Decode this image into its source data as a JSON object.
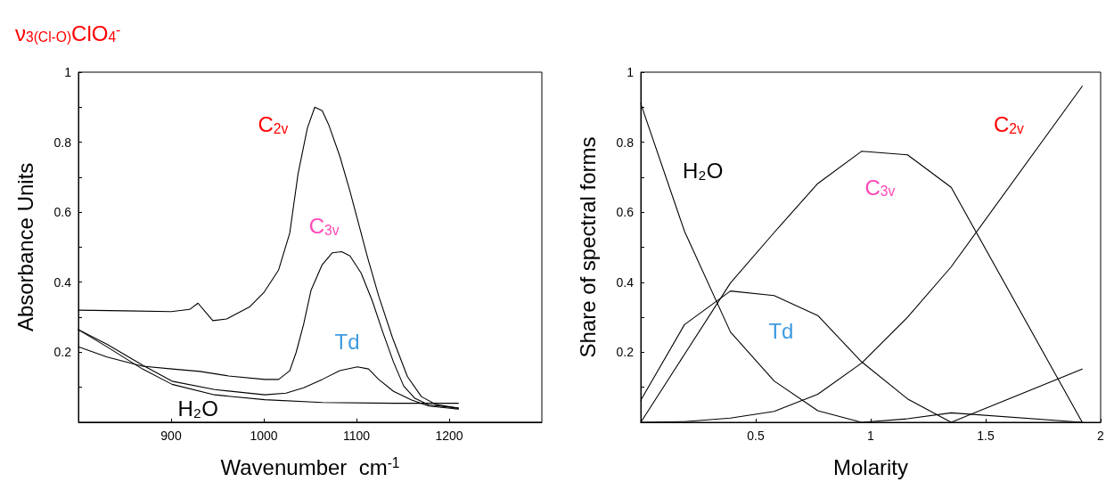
{
  "chart_data": [
    {
      "type": "line",
      "title": "ν$_{3(Cl-O)}$ClO$_{4}$$^{-}$",
      "xlabel": "Wavenumber  cm$^{-1}$",
      "ylabel": "Absorbance Units",
      "xlim": [
        800,
        1300
      ],
      "xticks": [
        900,
        1000,
        1100,
        1200
      ],
      "ylim": [
        0,
        1
      ],
      "yticks": [
        {
          "value": 0.1,
          "label": null
        },
        0.2,
        {
          "value": 0.3,
          "label": null
        },
        0.4,
        {
          "value": 0.5,
          "label": null
        },
        0.6,
        {
          "value": 0.7,
          "label": null
        },
        0.8,
        {
          "value": 0.9,
          "label": null
        },
        1
      ],
      "series": [
        {
          "name": "C$_{2v}$",
          "color": "#000000",
          "x": [
            800,
            850,
            900,
            920,
            929,
            937,
            945,
            960,
            985,
            1000,
            1016,
            1028,
            1037,
            1047,
            1055,
            1063,
            1070,
            1082,
            1093,
            1100,
            1112,
            1124,
            1139,
            1155,
            1170,
            1186,
            1210
          ],
          "values": [
            0.32,
            0.318,
            0.316,
            0.322,
            0.34,
            0.315,
            0.29,
            0.295,
            0.33,
            0.37,
            0.435,
            0.54,
            0.71,
            0.84,
            0.9,
            0.89,
            0.85,
            0.76,
            0.66,
            0.59,
            0.47,
            0.36,
            0.24,
            0.13,
            0.073,
            0.05,
            0.04
          ]
        },
        {
          "name": "C$_{3v}$",
          "color": "#000000",
          "x": [
            800,
            831,
            869,
            901,
            931,
            962,
            1001,
            1016,
            1028,
            1035,
            1043,
            1051,
            1063,
            1074,
            1084,
            1093,
            1105,
            1117,
            1128,
            1140,
            1151,
            1163,
            1178,
            1210
          ],
          "values": [
            0.215,
            0.186,
            0.16,
            0.152,
            0.145,
            0.132,
            0.122,
            0.122,
            0.147,
            0.2,
            0.28,
            0.377,
            0.45,
            0.484,
            0.487,
            0.475,
            0.426,
            0.347,
            0.26,
            0.171,
            0.103,
            0.068,
            0.049,
            0.04
          ]
        },
        {
          "name": "Td",
          "color": "#000000",
          "x": [
            800,
            831,
            869,
            901,
            947,
            1001,
            1024,
            1043,
            1063,
            1082,
            1101,
            1113,
            1124,
            1140,
            1159,
            1178,
            1210
          ],
          "values": [
            0.264,
            0.222,
            0.163,
            0.117,
            0.093,
            0.078,
            0.083,
            0.098,
            0.122,
            0.147,
            0.158,
            0.152,
            0.122,
            0.088,
            0.064,
            0.046,
            0.037
          ]
        },
        {
          "name": "H₂O",
          "color": "#000000",
          "x": [
            800,
            831,
            869,
            901,
            947,
            1001,
            1063,
            1140,
            1210
          ],
          "values": [
            0.264,
            0.215,
            0.152,
            0.108,
            0.078,
            0.064,
            0.056,
            0.054,
            0.054
          ]
        }
      ]
    },
    {
      "type": "line",
      "xlabel": "Molarity",
      "ylabel": "Share of spectral forms",
      "xlim": [
        0,
        2
      ],
      "xticks": [
        0.5,
        1,
        1.5,
        2
      ],
      "ylim": [
        0,
        1
      ],
      "yticks": [
        {
          "value": 0.1,
          "label": null
        },
        0.2,
        {
          "value": 0.3,
          "label": null
        },
        0.4,
        {
          "value": 0.5,
          "label": null
        },
        0.6,
        {
          "value": 0.7,
          "label": null
        },
        0.8,
        {
          "value": 0.9,
          "label": null
        },
        1
      ],
      "x": [
        0,
        0.19,
        0.39,
        0.58,
        0.77,
        0.96,
        1.16,
        1.35,
        1.92
      ],
      "series": [
        {
          "name": "H₂O",
          "color": "#000000",
          "values": [
            0.91,
            0.546,
            0.258,
            0.118,
            0.033,
            0,
            0.01,
            0.027,
            0
          ]
        },
        {
          "name": "Td",
          "color": "#000000",
          "values": [
            0.063,
            0.279,
            0.375,
            0.362,
            0.305,
            0.173,
            0.067,
            0,
            0.152
          ]
        },
        {
          "name": "C$_{3v}$",
          "color": "#000000",
          "values": [
            0,
            0.194,
            0.398,
            0.542,
            0.682,
            0.774,
            0.764,
            0.671,
            0
          ]
        },
        {
          "name": "C$_{2v}$",
          "color": "#000000",
          "values": [
            0,
            0.002,
            0.012,
            0.031,
            0.08,
            0.169,
            0.3,
            0.444,
            0.96
          ]
        }
      ]
    }
  ]
}
